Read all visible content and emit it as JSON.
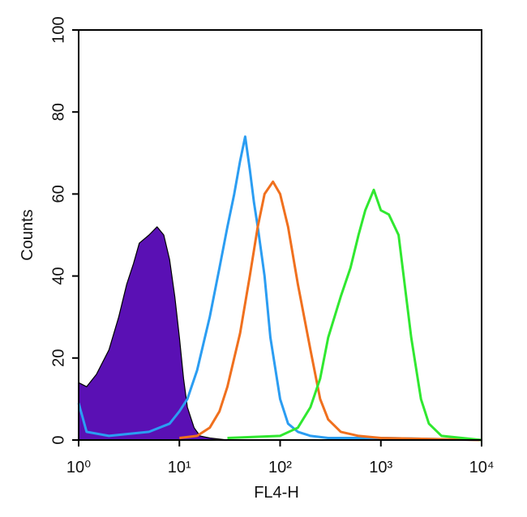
{
  "chart_data": {
    "type": "histogram-overlay",
    "xlabel": "FL4-H",
    "ylabel": "Counts",
    "xscale": "log",
    "xlim": [
      1,
      10000
    ],
    "ylim": [
      0,
      100
    ],
    "xticks": [
      {
        "value": 1,
        "label": "10⁰"
      },
      {
        "value": 10,
        "label": "10¹"
      },
      {
        "value": 100,
        "label": "10²"
      },
      {
        "value": 1000,
        "label": "10³"
      },
      {
        "value": 10000,
        "label": "10⁴"
      }
    ],
    "yticks": [
      0,
      20,
      40,
      60,
      80,
      100
    ],
    "series": [
      {
        "color": "#5a10b4",
        "fill": true,
        "x": [
          1,
          1.2,
          1.5,
          2,
          2.5,
          3,
          3.5,
          4,
          5,
          6,
          7,
          8,
          9,
          10,
          11,
          12,
          14,
          16,
          20,
          30
        ],
        "values": [
          14,
          13,
          16,
          22,
          30,
          38,
          43,
          48,
          50,
          52,
          50,
          44,
          35,
          25,
          15,
          8,
          3,
          1,
          0.5,
          0
        ]
      },
      {
        "color": "#2b9df2",
        "fill": false,
        "x": [
          1,
          1.2,
          2,
          5,
          8,
          10,
          12,
          15,
          20,
          25,
          30,
          35,
          40,
          45,
          50,
          55,
          60,
          70,
          80,
          100,
          120,
          150,
          200,
          300,
          1000,
          10000
        ],
        "values": [
          9,
          2,
          1,
          2,
          4,
          7,
          10,
          17,
          30,
          42,
          52,
          60,
          68,
          74,
          66,
          58,
          52,
          40,
          25,
          10,
          4,
          2,
          1,
          0.5,
          0.5,
          0
        ]
      },
      {
        "color": "#f0701e",
        "fill": false,
        "x": [
          10,
          15,
          20,
          25,
          30,
          40,
          50,
          60,
          70,
          85,
          100,
          120,
          150,
          200,
          250,
          300,
          400,
          600,
          1000,
          10000
        ],
        "values": [
          0.5,
          1,
          3,
          7,
          13,
          26,
          40,
          52,
          60,
          63,
          60,
          52,
          38,
          22,
          10,
          5,
          2,
          1,
          0.5,
          0
        ]
      },
      {
        "color": "#30e830",
        "fill": false,
        "x": [
          30,
          100,
          150,
          200,
          250,
          300,
          400,
          500,
          600,
          700,
          850,
          1000,
          1200,
          1500,
          2000,
          2500,
          3000,
          4000,
          10000
        ],
        "values": [
          0.5,
          1,
          3,
          8,
          15,
          25,
          35,
          42,
          50,
          56,
          61,
          56,
          55,
          50,
          25,
          10,
          4,
          1,
          0
        ]
      }
    ]
  }
}
